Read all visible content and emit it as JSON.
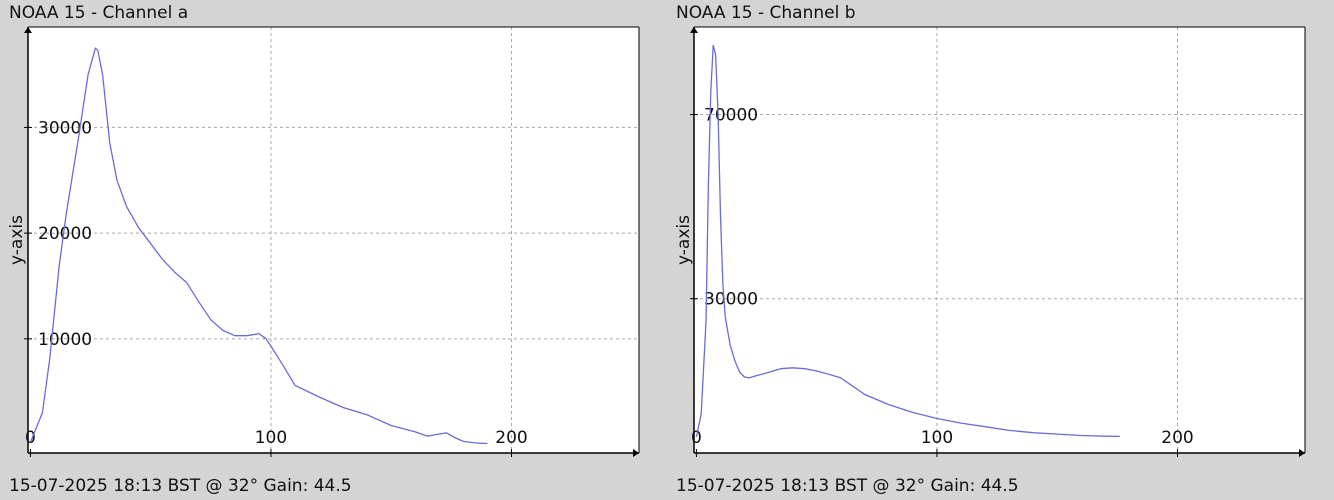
{
  "colors": {
    "background": "#d4d4d4",
    "plot_background": "#ffffff",
    "series_line": "#6b6bd6",
    "grid": "#a8a8a8",
    "axis": "#000000"
  },
  "panels": [
    {
      "title": "NOAA 15 - Channel a",
      "footer": "15-07-2025 18:13 BST @ 32° Gain: 44.5"
    },
    {
      "title": "NOAA 15 - Channel b",
      "footer": "15-07-2025 18:13 BST @ 32° Gain: 44.5"
    }
  ],
  "chart_data": [
    {
      "type": "line",
      "title": "NOAA 15 - Channel a",
      "xlabel": "",
      "ylabel": "y-axis",
      "xlim": [
        -1,
        253
      ],
      "ylim": [
        -800,
        39500
      ],
      "xticks": [
        0,
        100,
        200
      ],
      "xtick_labels": [
        "0",
        "100",
        "200"
      ],
      "yticks": [
        10000,
        20000,
        30000
      ],
      "ytick_labels": [
        "10000",
        "20000",
        "30000"
      ],
      "grid": true,
      "series": [
        {
          "x": [
            0,
            5,
            8,
            12,
            15,
            20,
            24,
            27,
            28,
            30,
            33,
            36,
            40,
            45,
            50,
            55,
            60,
            65,
            70,
            75,
            80,
            85,
            90,
            95,
            98,
            100,
            105,
            110,
            120,
            130,
            140,
            150,
            160,
            165,
            170,
            173,
            176,
            180,
            185,
            190
          ],
          "y": [
            200,
            3000,
            8000,
            17000,
            22000,
            29000,
            35000,
            37500,
            37300,
            35000,
            28500,
            25000,
            22500,
            20500,
            19000,
            17500,
            16300,
            15300,
            13500,
            11800,
            10800,
            10300,
            10300,
            10500,
            10000,
            9300,
            7500,
            5600,
            4500,
            3500,
            2800,
            1800,
            1200,
            800,
            1000,
            1100,
            700,
            300,
            150,
            100
          ]
        }
      ]
    },
    {
      "type": "line",
      "title": "NOAA 15 - Channel b",
      "xlabel": "",
      "ylabel": "y-axis",
      "xlim": [
        -1,
        253
      ],
      "ylim": [
        -3500,
        89000
      ],
      "xticks": [
        0,
        100,
        200
      ],
      "xtick_labels": [
        "0",
        "100",
        "200"
      ],
      "yticks": [
        30000,
        70000
      ],
      "ytick_labels": [
        "30000",
        "70000"
      ],
      "grid": true,
      "series": [
        {
          "x": [
            0,
            2,
            4,
            5,
            6,
            7,
            8,
            9,
            10,
            11,
            12,
            14,
            16,
            18,
            20,
            22,
            25,
            30,
            35,
            40,
            45,
            50,
            55,
            60,
            65,
            70,
            80,
            90,
            100,
            110,
            120,
            130,
            140,
            150,
            160,
            170,
            176
          ],
          "y": [
            0,
            5000,
            25000,
            55000,
            75000,
            85000,
            83000,
            70000,
            48000,
            33000,
            26000,
            20000,
            16500,
            14000,
            13000,
            12800,
            13300,
            14000,
            14800,
            15000,
            14800,
            14300,
            13600,
            12800,
            11000,
            9200,
            7000,
            5300,
            4000,
            3000,
            2200,
            1400,
            900,
            600,
            300,
            150,
            100
          ]
        }
      ]
    }
  ]
}
